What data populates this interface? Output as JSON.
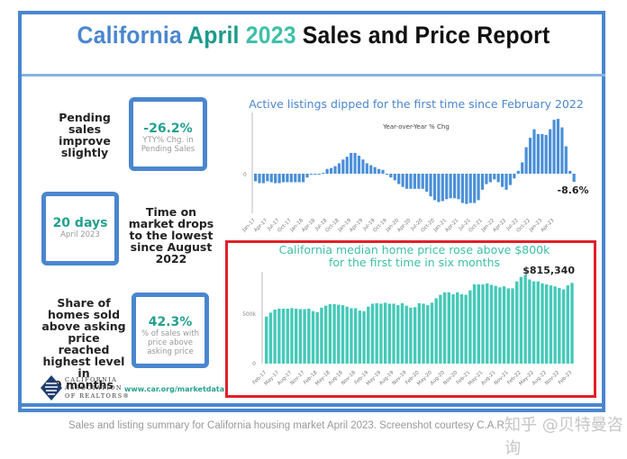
{
  "report": {
    "title_parts": [
      "California",
      "April",
      "2023",
      "Sales and Price Report"
    ],
    "caption": "Sales and listing summary for California housing market April 2023. Screenshot courtesy C.A.R.",
    "watermark": "知乎 @贝特曼咨询",
    "colors": {
      "frame": "#4a86cf",
      "teal": "#23a08f",
      "bar_blue": "#4a8fd8",
      "bar_teal": "#45c9b8",
      "highlight": "#e0202a"
    }
  },
  "stats": [
    {
      "text": [
        "Pending",
        "sales",
        "improve",
        "slightly"
      ],
      "value": "-26.2%",
      "sub": [
        "YTY% Chg. in",
        "Pending Sales"
      ]
    },
    {
      "text": [
        "Time on",
        "market drops",
        "to the lowest",
        "since August",
        "2022"
      ],
      "value": "20 days",
      "sub": [
        "April 2023"
      ]
    },
    {
      "text": [
        "Share of",
        "homes sold",
        "above asking",
        "price reached",
        "highest level in",
        "9 months"
      ],
      "value": "42.3%",
      "sub": [
        "% of sales with",
        "price above",
        "asking price"
      ]
    }
  ],
  "logo": {
    "lines": [
      "CALIFORNIA",
      "ASSOCIATION",
      "OF REALTORS®"
    ],
    "url": "www.car.org/marketdata"
  },
  "chart_data": [
    {
      "type": "bar",
      "title": "Active listings dipped for the first time since February 2022",
      "subtitle": "Year-over-Year % Chg",
      "xlabel": "",
      "ylabel": "",
      "y_ticks": [
        "0"
      ],
      "tick_labels": [
        "Jan-17",
        "Apr-17",
        "Jul-17",
        "Oct-17",
        "Jan-18",
        "Apr-18",
        "Jul-18",
        "Oct-18",
        "Jan-19",
        "Apr-19",
        "Jul-19",
        "Oct-19",
        "Jan-20",
        "Apr-20",
        "Jul-20",
        "Oct-20",
        "Jan-21",
        "Apr-21",
        "Jul-21",
        "Oct-21",
        "Jan-22",
        "Apr-22",
        "Jul-22",
        "Oct-22",
        "Jan-23",
        "Apr-23"
      ],
      "annotation": "-8.6%",
      "ylim": [
        -40,
        50
      ],
      "values": [
        -8,
        -10,
        -10,
        -8,
        -9,
        -10,
        -10,
        -9,
        -9,
        -9,
        -9,
        -9,
        -9,
        -4,
        -1,
        -1,
        -1,
        1,
        5,
        6,
        8,
        11,
        15,
        18,
        22,
        22,
        19,
        15,
        11,
        9,
        7,
        5,
        4,
        -1,
        -4,
        -7,
        -11,
        -14,
        -16,
        -16,
        -16,
        -16,
        -16,
        -19,
        -24,
        -28,
        -30,
        -29,
        -27,
        -26,
        -26,
        -27,
        -31,
        -32,
        -31,
        -31,
        -28,
        -17,
        -11,
        -9,
        -6,
        -9,
        -14,
        -17,
        -12,
        -5,
        3,
        12,
        28,
        38,
        47,
        42,
        42,
        41,
        47,
        57,
        58,
        49,
        29,
        3,
        -8.6
      ]
    },
    {
      "type": "bar",
      "title": "California median home price rose above $800k for the first time in six months",
      "xlabel": "",
      "ylabel": "",
      "y_ticks": [
        "0",
        "500k"
      ],
      "tick_labels": [
        "Feb-17",
        "May-17",
        "Aug-17",
        "Nov-17",
        "Feb-18",
        "May-18",
        "Aug-18",
        "Nov-18",
        "Feb-19",
        "May-19",
        "Aug-19",
        "Nov-19",
        "Feb-20",
        "May-20",
        "Aug-20",
        "Nov-20",
        "Feb-21",
        "May-21",
        "Aug-21",
        "Nov-21",
        "Feb-22",
        "May-22",
        "Aug-22",
        "Nov-22",
        "Feb-23"
      ],
      "annotation": "$815,340",
      "ylim": [
        0,
        950000
      ],
      "values": [
        475000,
        515000,
        545000,
        555000,
        555000,
        555000,
        560000,
        555000,
        550000,
        550000,
        555000,
        530000,
        520000,
        565000,
        585000,
        600000,
        600000,
        595000,
        590000,
        575000,
        560000,
        560000,
        535000,
        530000,
        575000,
        605000,
        610000,
        605000,
        615000,
        605000,
        605000,
        590000,
        610000,
        585000,
        565000,
        570000,
        610000,
        605000,
        590000,
        615000,
        660000,
        695000,
        720000,
        720000,
        700000,
        720000,
        700000,
        695000,
        740000,
        800000,
        800000,
        800000,
        810000,
        795000,
        785000,
        770000,
        780000,
        760000,
        760000,
        830000,
        875000,
        895000,
        850000,
        830000,
        830000,
        810000,
        800000,
        790000,
        780000,
        765000,
        750000,
        790000,
        815340
      ]
    }
  ]
}
